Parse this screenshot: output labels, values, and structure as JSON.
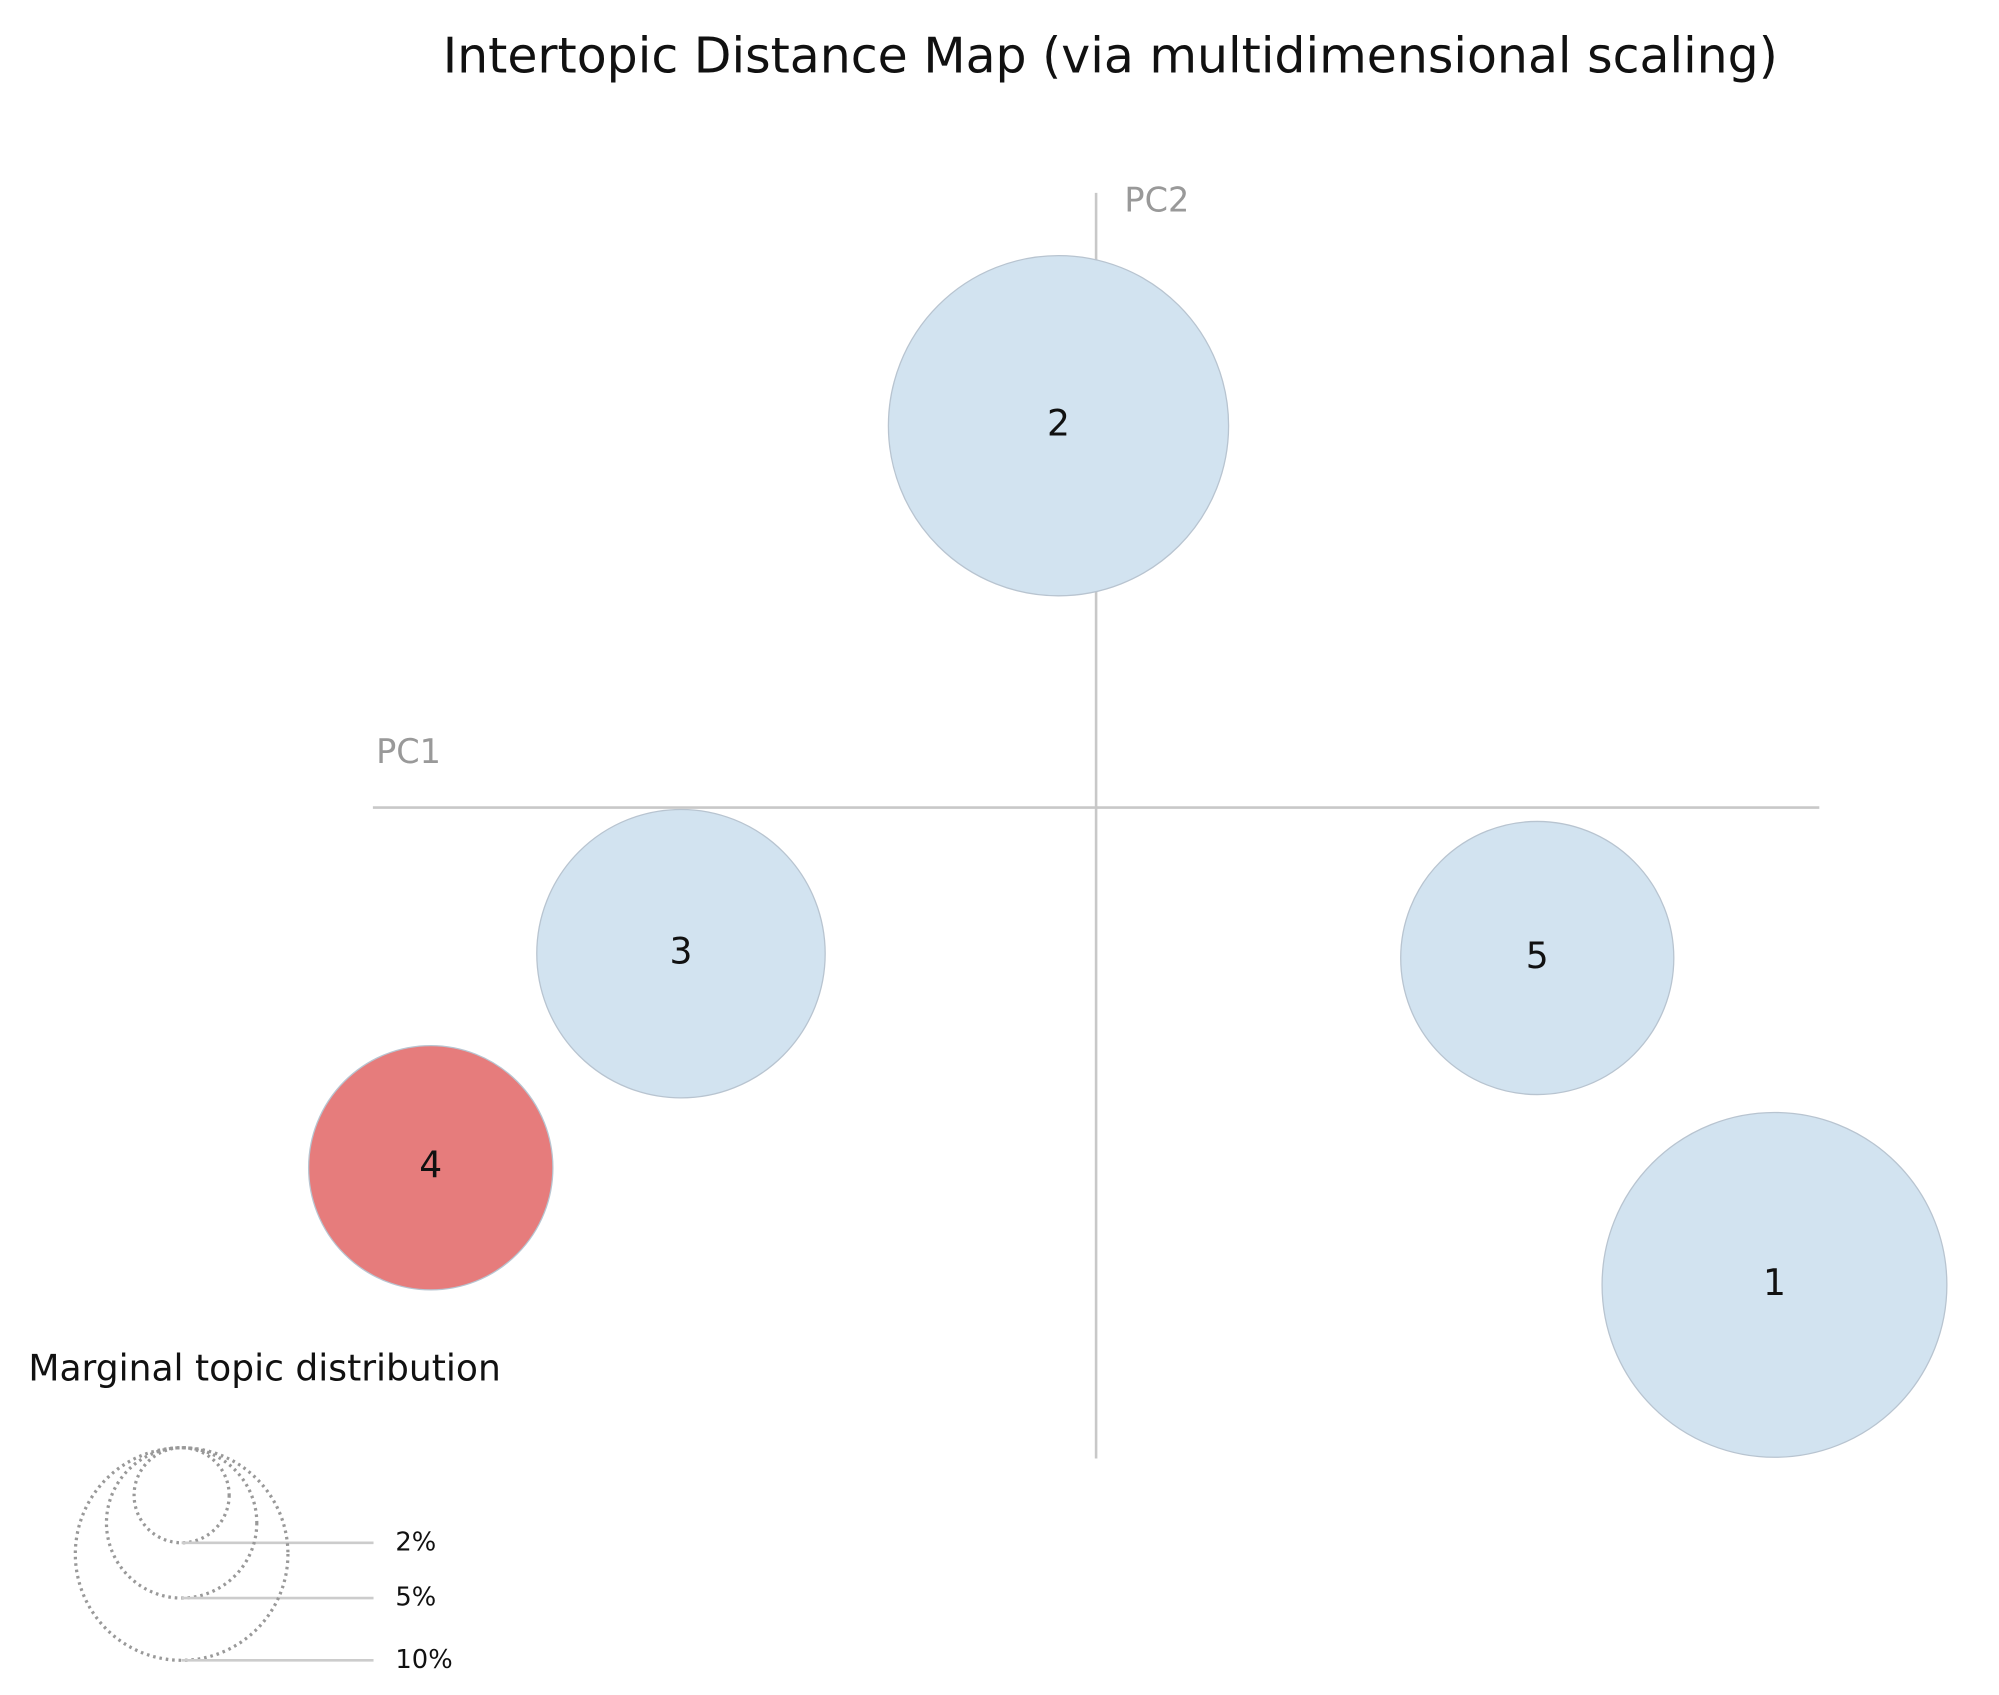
{
  "chart_data": {
    "type": "scatter",
    "title": "Intertopic Distance Map (via multidimensional scaling)",
    "xlabel": "PC1",
    "ylabel": "PC2",
    "categories": [
      "1",
      "2",
      "3",
      "4",
      "5"
    ],
    "x": [
      0.469,
      -0.026,
      -0.287,
      -0.46,
      0.305
    ],
    "values": [
      -0.33,
      0.264,
      -0.101,
      -0.249,
      -0.104
    ],
    "sizes": [
      26.3,
      25.6,
      18.4,
      13.2,
      16.5
    ],
    "colors": [
      "#d2e3f0",
      "#d2e3f0",
      "#d2e3f0",
      "#e67c7c",
      "#d2e3f0"
    ],
    "xlim": [
      -0.5,
      0.5
    ],
    "ylim": [
      -0.45,
      0.425
    ],
    "legend": {
      "title": "Marginal topic distribution",
      "sizes": [
        {
          "value": 2,
          "label": "2%"
        },
        {
          "value": 5,
          "label": "5%"
        },
        {
          "value": 10,
          "label": "10%"
        }
      ]
    }
  }
}
